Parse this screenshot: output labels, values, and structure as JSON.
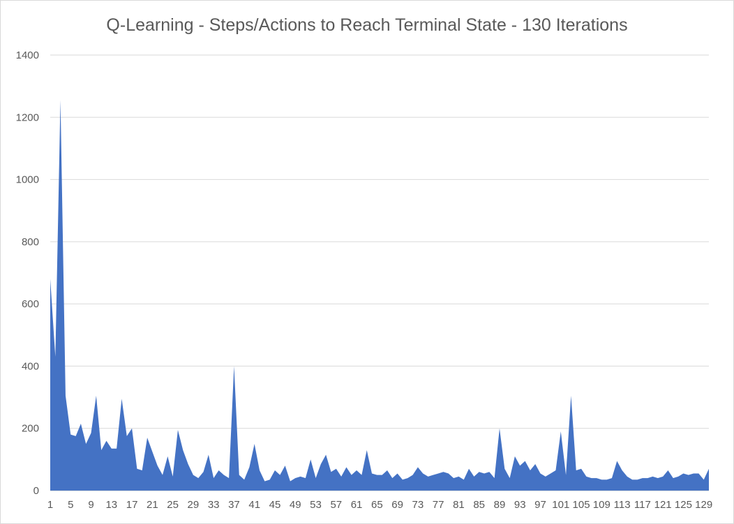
{
  "chart_data": {
    "type": "area",
    "title": "Q-Learning - Steps/Actions to Reach Terminal State - 130 Iterations",
    "xlabel": "",
    "ylabel": "",
    "ylim": [
      0,
      1400
    ],
    "yticks": [
      0,
      200,
      400,
      600,
      800,
      1000,
      1200,
      1400
    ],
    "grid": true,
    "legend": "none",
    "color": "#4472c4",
    "x_tick_labels": [
      "1",
      "5",
      "9",
      "13",
      "17",
      "21",
      "25",
      "29",
      "33",
      "37",
      "41",
      "45",
      "49",
      "53",
      "57",
      "61",
      "65",
      "69",
      "73",
      "77",
      "81",
      "85",
      "89",
      "93",
      "97",
      "101",
      "105",
      "109",
      "113",
      "117",
      "121",
      "125",
      "129"
    ],
    "x": [
      1,
      2,
      3,
      4,
      5,
      6,
      7,
      8,
      9,
      10,
      11,
      12,
      13,
      14,
      15,
      16,
      17,
      18,
      19,
      20,
      21,
      22,
      23,
      24,
      25,
      26,
      27,
      28,
      29,
      30,
      31,
      32,
      33,
      34,
      35,
      36,
      37,
      38,
      39,
      40,
      41,
      42,
      43,
      44,
      45,
      46,
      47,
      48,
      49,
      50,
      51,
      52,
      53,
      54,
      55,
      56,
      57,
      58,
      59,
      60,
      61,
      62,
      63,
      64,
      65,
      66,
      67,
      68,
      69,
      70,
      71,
      72,
      73,
      74,
      75,
      76,
      77,
      78,
      79,
      80,
      81,
      82,
      83,
      84,
      85,
      86,
      87,
      88,
      89,
      90,
      91,
      92,
      93,
      94,
      95,
      96,
      97,
      98,
      99,
      100,
      101,
      102,
      103,
      104,
      105,
      106,
      107,
      108,
      109,
      110,
      111,
      112,
      113,
      114,
      115,
      116,
      117,
      118,
      119,
      120,
      121,
      122,
      123,
      124,
      125,
      126,
      127,
      128,
      129,
      130
    ],
    "values": [
      680,
      430,
      1255,
      305,
      180,
      175,
      215,
      150,
      185,
      305,
      130,
      160,
      135,
      135,
      295,
      175,
      200,
      70,
      65,
      170,
      125,
      80,
      50,
      110,
      45,
      195,
      130,
      85,
      50,
      40,
      60,
      115,
      40,
      65,
      50,
      40,
      400,
      50,
      35,
      75,
      150,
      65,
      30,
      35,
      65,
      50,
      80,
      30,
      40,
      45,
      40,
      100,
      40,
      85,
      115,
      60,
      70,
      45,
      75,
      50,
      65,
      50,
      130,
      55,
      50,
      50,
      65,
      40,
      55,
      35,
      40,
      50,
      75,
      55,
      45,
      50,
      55,
      60,
      55,
      40,
      45,
      35,
      70,
      45,
      60,
      55,
      60,
      40,
      200,
      70,
      40,
      110,
      80,
      95,
      65,
      85,
      55,
      45,
      55,
      65,
      190,
      50,
      305,
      65,
      70,
      45,
      40,
      40,
      35,
      35,
      40,
      95,
      65,
      45,
      35,
      35,
      40,
      40,
      45,
      40,
      45,
      65,
      40,
      45,
      55,
      50,
      55,
      55,
      35,
      70
    ]
  }
}
